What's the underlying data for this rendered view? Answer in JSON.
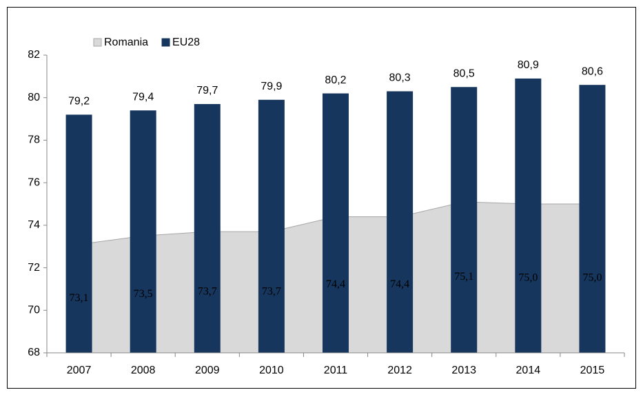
{
  "chart_data": {
    "type": "bar",
    "categories": [
      "2007",
      "2008",
      "2009",
      "2010",
      "2011",
      "2012",
      "2013",
      "2014",
      "2015"
    ],
    "series": [
      {
        "name": "Romania",
        "type": "area",
        "color": "#d9d9d9",
        "values": [
          73.1,
          73.5,
          73.7,
          73.7,
          74.4,
          74.4,
          75.1,
          75.0,
          75.0
        ],
        "value_labels": [
          "73,1",
          "73,5",
          "73,7",
          "73,7",
          "74,4",
          "74,4",
          "75,1",
          "75,0",
          "75,0"
        ]
      },
      {
        "name": "EU28",
        "type": "bar",
        "color": "#17365d",
        "values": [
          79.2,
          79.4,
          79.7,
          79.9,
          80.2,
          80.3,
          80.5,
          80.9,
          80.6
        ],
        "value_labels": [
          "79,2",
          "79,4",
          "79,7",
          "79,9",
          "80,2",
          "80,3",
          "80,5",
          "80,9",
          "80,6"
        ]
      }
    ],
    "ylim": [
      68,
      82
    ],
    "yticks": [
      68,
      70,
      72,
      74,
      76,
      78,
      80,
      82
    ],
    "grid": false,
    "legend": "top-left"
  }
}
